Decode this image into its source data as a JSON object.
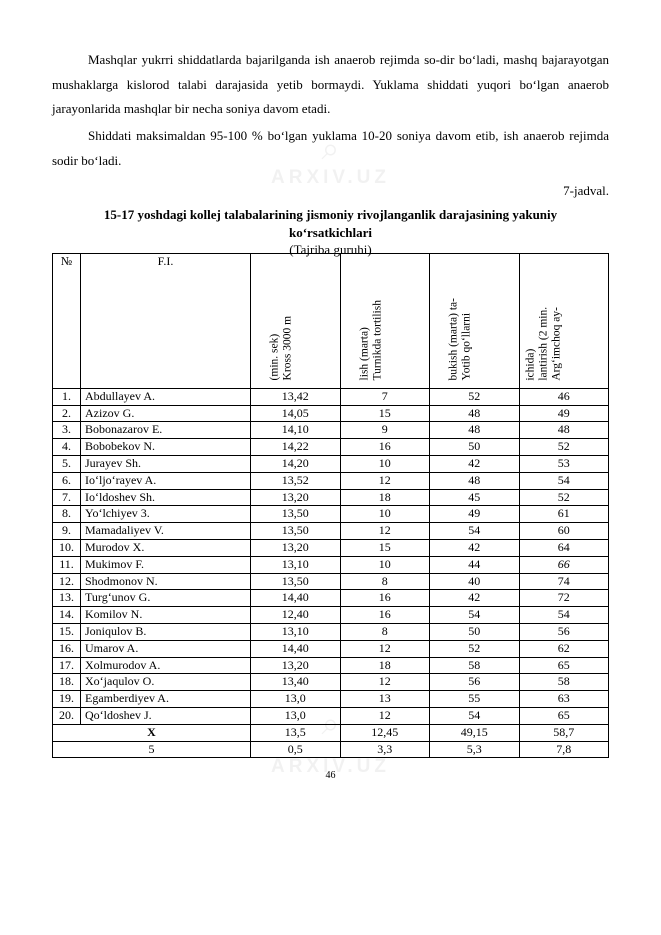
{
  "paragraphs": {
    "p1": "Mashqlar yukrri shiddatlarda bajarilganda ish anaerob rejimda so-dir bo‘ladi, mashq bajarayotgan mushaklarga kislorod talabi darajasida yetib bormaydi. Yuklama shiddati yuqori bo‘lgan anaerob jarayonlarida mashqlar bir necha soniya davom etadi.",
    "p2": "Shiddati maksimaldan 95-100 % bo‘lgan yuklama 10-20 soniya davom etib, ish anaerob rejimda sodir bo‘ladi."
  },
  "jadval_label": "7-jadval.",
  "table_title_l1": "15-17 yoshdagi kollej talabalarining jismoniy rivojlanganlik darajasining yakuniy",
  "table_title_l2": "ko‘rsatkichlari",
  "table_subcaption": "(Tajriba guruhi)",
  "headers": {
    "num": "№",
    "name": "F.I.",
    "c1": {
      "l1": "Kross 3000 m",
      "l2": "(min. sek)"
    },
    "c2": {
      "l1": "Turnikda tortilish",
      "l2": "lish (marta)"
    },
    "c3": {
      "l1": "Yotib qo‘llarni",
      "l2": "bukish (marta) ta-"
    },
    "c4": {
      "l1": "Arg‘imchoq ay-",
      "l2": "lantirish (2 min.",
      "l3": "ichida)"
    }
  },
  "rows": [
    {
      "n": "1.",
      "name": "Abdullayev A.",
      "v": [
        "13,42",
        "7",
        "52",
        "46"
      ]
    },
    {
      "n": "2.",
      "name": "Azizov G.",
      "v": [
        "14,05",
        "15",
        "48",
        "49"
      ]
    },
    {
      "n": "3.",
      "name": "Bobonazarov E.",
      "v": [
        "14,10",
        "9",
        "48",
        "48"
      ]
    },
    {
      "n": "4.",
      "name": "Bobobekov N.",
      "v": [
        "14,22",
        "16",
        "50",
        "52"
      ]
    },
    {
      "n": "5.",
      "name": "Jurayev Sh.",
      "v": [
        "14,20",
        "10",
        "42",
        "53"
      ]
    },
    {
      "n": "6.",
      "name": "Io‘ljo‘rayev A.",
      "v": [
        "13,52",
        "12",
        "48",
        "54"
      ]
    },
    {
      "n": "7.",
      "name": "Io‘ldoshev Sh.",
      "v": [
        "13,20",
        "18",
        "45",
        "52"
      ]
    },
    {
      "n": "8.",
      "name": "Yo‘lchiyev 3.",
      "v": [
        "13,50",
        "10",
        "49",
        "61"
      ]
    },
    {
      "n": "9.",
      "name": "Mamadaliyev V.",
      "v": [
        "13,50",
        "12",
        "54",
        "60"
      ]
    },
    {
      "n": "10.",
      "name": "Murodov X.",
      "v": [
        "13,20",
        "15",
        "42",
        "64"
      ]
    },
    {
      "n": "11.",
      "name": "Mukimov F.",
      "v": [
        "13,10",
        "10",
        "44",
        "66"
      ],
      "italic_col": 3
    },
    {
      "n": "12.",
      "name": "Shodmonov N.",
      "v": [
        "13,50",
        "8",
        "40",
        "74"
      ]
    },
    {
      "n": "13.",
      "name": "Turg‘unov G.",
      "v": [
        "14,40",
        "16",
        "42",
        "72"
      ]
    },
    {
      "n": "14.",
      "name": "Komilov N.",
      "v": [
        "12,40",
        "16",
        "54",
        "54"
      ]
    },
    {
      "n": "15.",
      "name": "Joniqulov B.",
      "v": [
        "13,10",
        "8",
        "50",
        "56"
      ]
    },
    {
      "n": "16.",
      "name": "Umarov A.",
      "v": [
        "14,40",
        "12",
        "52",
        "62"
      ]
    },
    {
      "n": "17.",
      "name": "Xolmurodov A.",
      "v": [
        "13,20",
        "18",
        "58",
        "65"
      ]
    },
    {
      "n": "18.",
      "name": "Xo‘jaqulov O.",
      "v": [
        "13,40",
        "12",
        "56",
        "58"
      ]
    },
    {
      "n": "19.",
      "name": "Egamberdiyev A.",
      "v": [
        "13,0",
        "13",
        "55",
        "63"
      ]
    },
    {
      "n": "20.",
      "name": "Qo‘ldoshev J.",
      "v": [
        "13,0",
        "12",
        "54",
        "65"
      ]
    }
  ],
  "footer": [
    {
      "label": "X",
      "v": [
        "13,5",
        "12,45",
        "49,15",
        "58,7"
      ],
      "bold": true
    },
    {
      "label": "5",
      "v": [
        "0,5",
        "3,3",
        "5,3",
        "7,8"
      ]
    }
  ],
  "page_number": "46",
  "watermark_text": "ARXIV.UZ",
  "watermark_icon": "⌕"
}
